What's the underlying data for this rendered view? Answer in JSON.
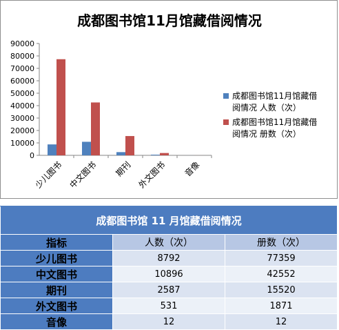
{
  "chart_data": {
    "type": "bar",
    "title": "成都图书馆11月馆藏借阅情况",
    "categories": [
      "少儿图书",
      "中文图书",
      "期刊",
      "外文图书",
      "音像"
    ],
    "series": [
      {
        "name": "成都图书馆11月馆藏借阅情况 人数（次）",
        "legend_lines": [
          "成都图书馆11月馆藏借",
          "阅情况 人数（次）"
        ],
        "color": "#4f81bd",
        "values": [
          8792,
          10896,
          2587,
          531,
          12
        ]
      },
      {
        "name": "成都图书馆11月馆藏借阅情况 册数（次）",
        "legend_lines": [
          "成都图书馆11月馆藏借",
          "阅情况 册数（次）"
        ],
        "color": "#c0504d",
        "values": [
          77359,
          42552,
          15520,
          1871,
          12
        ]
      }
    ],
    "ylim": [
      0,
      90000
    ],
    "yticks": [
      0,
      10000,
      20000,
      30000,
      40000,
      50000,
      60000,
      70000,
      80000,
      90000
    ],
    "grid": false,
    "legend_position": "right"
  },
  "table": {
    "title": "成都图书馆 11 月馆藏借阅情况",
    "headers": [
      "指标",
      "人数（次）",
      "册数（次）"
    ],
    "rows": [
      [
        "少儿图书",
        "8792",
        "77359"
      ],
      [
        "中文图书",
        "10896",
        "42552"
      ],
      [
        "期刊",
        "2587",
        "15520"
      ],
      [
        "外文图书",
        "531",
        "1871"
      ],
      [
        "音像",
        "12",
        "12"
      ]
    ]
  }
}
